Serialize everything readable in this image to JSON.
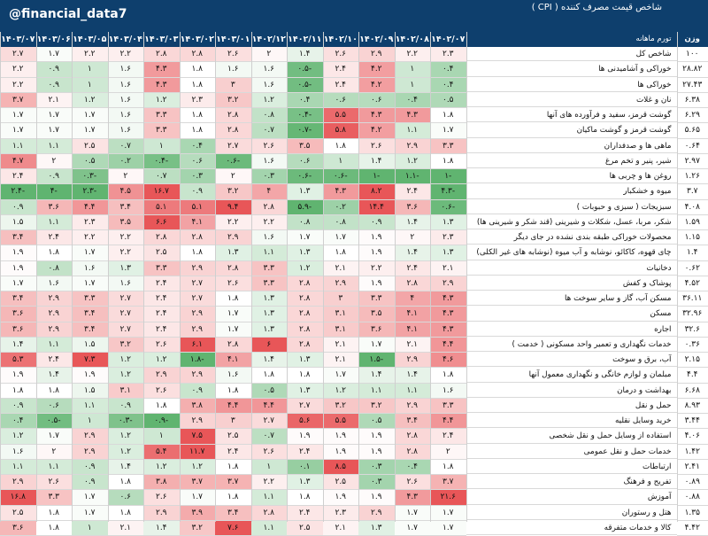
{
  "header": {
    "handle": "@financial_data7",
    "title": "شاخص قیمت مصرف کننده ( CPI )",
    "weight_label": "وزن اهمیت",
    "name_label": "تورم ماهانه",
    "months": [
      "۱۴۰۲/۰۷",
      "۱۴۰۲/۰۸",
      "۱۴۰۲/۰۹",
      "۱۴۰۲/۱۰",
      "۱۴۰۲/۱۱",
      "۱۴۰۲/۱۲",
      "۱۴۰۳/۰۱",
      "۱۴۰۳/۰۲",
      "۱۴۰۳/۰۳",
      "۱۴۰۳/۰۴",
      "۱۴۰۳/۰۵",
      "۱۴۰۳/۰۶",
      "۱۴۰۳/۰۷"
    ]
  },
  "colors": {
    "header_bg": "#0e3f6d",
    "positive_high": "#e8373a",
    "negative_high": "#3fa45b",
    "neutral": "#ffffff"
  },
  "rows": [
    {
      "weight": "۱۰۰",
      "name": "شاخص کل",
      "values": [
        2.3,
        2.2,
        2.9,
        2.6,
        1.4,
        2,
        2.6,
        2.8,
        2.8,
        2.2,
        2.2,
        1.7,
        2.7
      ]
    },
    {
      "weight": "۲۸.۸۲",
      "name": "خوراکی و آشامیدنی ها",
      "values": [
        0.4,
        1,
        4.2,
        2.4,
        -0.5,
        1.6,
        1.6,
        1.8,
        4.3,
        1.6,
        1,
        0.9,
        2.2
      ]
    },
    {
      "weight": "۲۷.۴۳",
      "name": "خوراکی ها",
      "values": [
        0.4,
        1,
        4.2,
        2.4,
        -0.5,
        1.6,
        3,
        1.8,
        4.3,
        1.6,
        1,
        0.9,
        2.2
      ]
    },
    {
      "weight": "۶.۳۸",
      "name": "نان و غلات",
      "values": [
        0.5,
        0.4,
        0.6,
        0.6,
        0.4,
        1.2,
        3.2,
        2.3,
        1.2,
        1.6,
        1.2,
        2.1,
        3.7
      ]
    },
    {
      "weight": "۶.۲۹",
      "name": "گوشت قرمز، سفید و فرآورده های آنها",
      "values": [
        1.8,
        4.3,
        4.3,
        5.5,
        -0.4,
        0.8,
        2.8,
        1.8,
        3.3,
        1.6,
        1.7,
        1.7,
        1.7
      ]
    },
    {
      "weight": "۵.۶۵",
      "name": "گوشت قرمز و گوشت ماکیان",
      "values": [
        1.7,
        1.1,
        4.2,
        5.8,
        -0.7,
        0.7,
        2.8,
        1.8,
        3.3,
        1.6,
        1.7,
        1.7,
        1.7
      ]
    },
    {
      "weight": "۰.۶۴",
      "name": "ماهی ها و صدفداران",
      "values": [
        3.3,
        2.9,
        2.6,
        1.8,
        3.5,
        2.6,
        2.7,
        0.4,
        1,
        0.7,
        2.5,
        1.1,
        1.1
      ]
    },
    {
      "weight": "۲.۹۷",
      "name": "شیر، پنیر و تخم مرغ",
      "values": [
        1.8,
        1.2,
        1.4,
        1,
        0.6,
        1.6,
        -0.6,
        0.6,
        -0.4,
        0.2,
        0.5,
        2,
        4.7
      ]
    },
    {
      "weight": "۱.۲۶",
      "name": "روغن ها و چربی ها",
      "values": [
        -1,
        -1.1,
        -1,
        -0.6,
        -0.6,
        0.3,
        2,
        0.3,
        0.7,
        2,
        -0.3,
        0.9,
        2.4
      ]
    },
    {
      "weight": "۳.۷",
      "name": "میوه و خشکبار",
      "values": [
        -4.3,
        2.4,
        8.2,
        4.3,
        1.3,
        4,
        3.2,
        0.9,
        16.7,
        4.5,
        -2.3,
        -4,
        -2.4
      ]
    },
    {
      "weight": "۴.۰۸",
      "name": "سبزیجات ( سبزی و حبوبات )",
      "values": [
        -0.6,
        3.6,
        14.4,
        0.2,
        -5.9,
        2.8,
        9.4,
        5.1,
        5.1,
        3.4,
        4.4,
        3.6,
        0.9
      ]
    },
    {
      "weight": "۱.۵۹",
      "name": "شکر، مربا، عسل، شکلات و شیرینی (قند شکر و شیرینی ها)",
      "values": [
        1.3,
        1.4,
        0.9,
        0.8,
        0.8,
        2.2,
        2.2,
        4.1,
        6.6,
        3.5,
        2.3,
        1.1,
        1.5
      ]
    },
    {
      "weight": "۱.۱۵",
      "name": "محصولات خوراکی طبقه بندی نشده در جای دیگر",
      "values": [
        2.3,
        2,
        1.9,
        1.7,
        1.7,
        1.6,
        2.9,
        2.8,
        2.8,
        2.2,
        2.2,
        2.4,
        3.4
      ]
    },
    {
      "weight": "۱.۴",
      "name": "چای قهوه، کاکائو، نوشابه و آب میوه (نوشابه های غیر الکلی)",
      "values": [
        1.3,
        1.4,
        1.9,
        1.8,
        1.3,
        1.1,
        1.3,
        1.8,
        2.5,
        2.2,
        1.7,
        1.8,
        1.9
      ]
    },
    {
      "weight": "۰.۶۲",
      "name": "دخانیات",
      "values": [
        2.1,
        2.4,
        2.2,
        2.1,
        1.2,
        3.3,
        2.8,
        2.9,
        3.3,
        1.3,
        1.6,
        0.8,
        1.9
      ]
    },
    {
      "weight": "۴.۵۲",
      "name": "پوشاک و کفش",
      "values": [
        2.9,
        2.8,
        1.9,
        2.9,
        2.8,
        3.3,
        2.6,
        2.7,
        2.4,
        1.6,
        1.7,
        1.6,
        1.7
      ]
    },
    {
      "weight": "۳۶.۱۱",
      "name": "مسکن آب، گاز و سایر سوخت ها",
      "values": [
        4.3,
        4,
        3.3,
        3,
        2.8,
        1.3,
        1.8,
        2.7,
        2.4,
        2.7,
        3.3,
        2.9,
        3.4
      ]
    },
    {
      "weight": "۳۲.۹۶",
      "name": "مسکن",
      "values": [
        4.3,
        4.1,
        3.5,
        3.1,
        2.8,
        1.3,
        1.7,
        2.9,
        2.4,
        2.7,
        3.4,
        2.9,
        3.6
      ]
    },
    {
      "weight": "۳۲.۶",
      "name": "اجاره",
      "values": [
        4.3,
        4.1,
        3.6,
        3.1,
        2.8,
        1.3,
        1.7,
        2.9,
        2.4,
        2.7,
        3.4,
        2.9,
        3.6
      ]
    },
    {
      "weight": "۰.۳۶",
      "name": "خدمات نگهداری و تعمیر واحد مسکونی ( خدمت )",
      "values": [
        4.4,
        2.1,
        1.7,
        2.1,
        2.8,
        6,
        2.8,
        6.1,
        2.6,
        3.2,
        1.5,
        1.1,
        1.4
      ]
    },
    {
      "weight": "۲.۱۵",
      "name": "آب، برق و سوخت",
      "values": [
        4.6,
        2.9,
        -1.5,
        2.1,
        1.3,
        1.4,
        4.1,
        -1.8,
        1.2,
        1.2,
        7.3,
        2.4,
        5.3
      ]
    },
    {
      "weight": "۴.۴",
      "name": "مبلمان و لوازم خانگی و نگهداری معمول آنها",
      "values": [
        1.8,
        1.4,
        1.4,
        1.7,
        1.8,
        1.8,
        1.6,
        2.9,
        2.9,
        1.2,
        1.9,
        1.4,
        1.9
      ]
    },
    {
      "weight": "۶.۶۸",
      "name": "بهداشت و درمان",
      "values": [
        1.6,
        1.1,
        1.1,
        1.2,
        1.3,
        0.5,
        1.8,
        0.9,
        2.6,
        3.1,
        1.5,
        1.8,
        1.8
      ]
    },
    {
      "weight": "۸.۹۳",
      "name": "حمل و نقل",
      "values": [
        3.3,
        2.9,
        3.2,
        3.2,
        2.7,
        4.4,
        4.4,
        3.8,
        1.8,
        0.9,
        1.1,
        0.6,
        0.9
      ]
    },
    {
      "weight": "۳.۴۴",
      "name": "خرید وسایل نقلیه",
      "values": [
        4.4,
        3.4,
        0.5,
        5.5,
        5.6,
        2.7,
        3,
        2.9,
        -0.9,
        -0.3,
        1,
        -0.5,
        0.4
      ]
    },
    {
      "weight": "۴.۰۶",
      "name": "استفاده از وسایل حمل و نقل شخصی",
      "values": [
        2.4,
        2.8,
        1.9,
        1.9,
        1.9,
        0.7,
        2.5,
        7.5,
        1,
        1.2,
        2.9,
        1.7,
        1.2
      ]
    },
    {
      "weight": "۱.۴۲",
      "name": "خدمات حمل و نقل عمومی",
      "values": [
        2,
        2.8,
        1.9,
        1.9,
        2.4,
        2.6,
        2.4,
        11.7,
        5.4,
        1.2,
        2.9,
        2,
        1.6
      ]
    },
    {
      "weight": "۲.۴۱",
      "name": "ارتباطات",
      "values": [
        1.8,
        0.4,
        0.3,
        8.5,
        0.1,
        1,
        1.8,
        1.2,
        1.2,
        1.4,
        0.9,
        1.1,
        1.1
      ]
    },
    {
      "weight": "۰.۸۹",
      "name": "تفریح و فرهنگ",
      "values": [
        3.7,
        2.6,
        0.3,
        2.5,
        1.3,
        2.2,
        3.7,
        3.7,
        3.8,
        1.8,
        0.9,
        2.6,
        2.9
      ]
    },
    {
      "weight": "۰.۸۸",
      "name": "آموزش",
      "values": [
        21.6,
        4.3,
        1.9,
        1.9,
        1.8,
        1.1,
        1.8,
        1.7,
        2.6,
        0.6,
        1.7,
        3.3,
        16.8
      ]
    },
    {
      "weight": "۱.۳۵",
      "name": "هتل و رستوران",
      "values": [
        1.7,
        1.7,
        2.9,
        2.3,
        2.4,
        2.8,
        3.4,
        3.9,
        2.9,
        1.8,
        1.7,
        1.8,
        2.5
      ]
    },
    {
      "weight": "۴.۴۲",
      "name": "کالا و خدمات متفرقه",
      "values": [
        1.7,
        1.7,
        1.3,
        2.1,
        2.5,
        1.1,
        7.6,
        3.2,
        1.4,
        2.1,
        1,
        1.8,
        3.6
      ]
    }
  ]
}
